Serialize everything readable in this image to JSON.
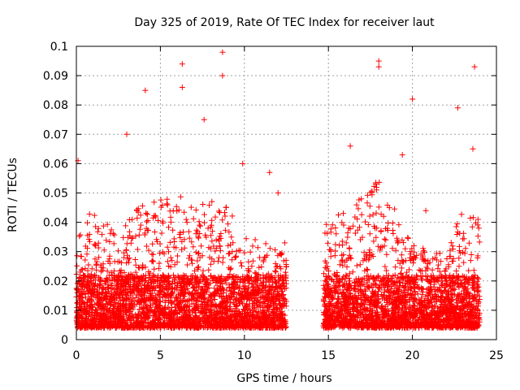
{
  "chart_data": {
    "type": "scatter",
    "title": "Day 325 of 2019, Rate Of TEC Index for receiver laut",
    "xlabel": "GPS time / hours",
    "ylabel": "ROTI / TECUs",
    "xlim": [
      0,
      25
    ],
    "ylim": [
      0,
      0.1
    ],
    "x_ticks": [
      0,
      5,
      10,
      15,
      20,
      25
    ],
    "x_tick_labels": [
      "0",
      "5",
      "10",
      "15",
      "20",
      "25"
    ],
    "y_ticks": [
      0,
      0.01,
      0.02,
      0.03,
      0.04,
      0.05,
      0.06,
      0.07,
      0.08,
      0.09,
      0.1
    ],
    "y_tick_labels": [
      "0",
      "0.01",
      "0.02",
      "0.03",
      "0.04",
      "0.05",
      "0.06",
      "0.07",
      "0.08",
      "0.09",
      "0.1"
    ],
    "grid": true,
    "marker": "plus",
    "color": "#ff0000",
    "data_segments": [
      {
        "x_start": 0.0,
        "x_end": 12.5
      },
      {
        "x_start": 14.7,
        "x_end": 24.0
      }
    ],
    "notable_points": [
      {
        "x": 6.3,
        "y": 0.094
      },
      {
        "x": 8.7,
        "y": 0.098
      },
      {
        "x": 8.7,
        "y": 0.09
      },
      {
        "x": 4.1,
        "y": 0.085
      },
      {
        "x": 6.3,
        "y": 0.086
      },
      {
        "x": 18.0,
        "y": 0.095
      },
      {
        "x": 18.0,
        "y": 0.093
      },
      {
        "x": 20.0,
        "y": 0.082
      },
      {
        "x": 23.7,
        "y": 0.093
      },
      {
        "x": 22.7,
        "y": 0.079
      },
      {
        "x": 7.6,
        "y": 0.075
      },
      {
        "x": 3.0,
        "y": 0.07
      },
      {
        "x": 0.1,
        "y": 0.061
      },
      {
        "x": 9.9,
        "y": 0.06
      },
      {
        "x": 11.5,
        "y": 0.057
      },
      {
        "x": 12.0,
        "y": 0.05
      },
      {
        "x": 12.4,
        "y": 0.033
      },
      {
        "x": 16.3,
        "y": 0.066
      },
      {
        "x": 19.4,
        "y": 0.063
      },
      {
        "x": 20.8,
        "y": 0.044
      },
      {
        "x": 23.6,
        "y": 0.065
      },
      {
        "x": 23.9,
        "y": 0.041
      }
    ],
    "envelope_hours": [
      0,
      1,
      2,
      3,
      4,
      5,
      6,
      7,
      8,
      9,
      10,
      11,
      12,
      15,
      16,
      17,
      18,
      19,
      20,
      21,
      22,
      23,
      24
    ],
    "envelope_typical_max": [
      0.035,
      0.045,
      0.04,
      0.04,
      0.048,
      0.05,
      0.05,
      0.045,
      0.048,
      0.045,
      0.035,
      0.035,
      0.03,
      0.04,
      0.045,
      0.05,
      0.055,
      0.045,
      0.035,
      0.03,
      0.03,
      0.045,
      0.04
    ],
    "typical_min": 0.004
  }
}
